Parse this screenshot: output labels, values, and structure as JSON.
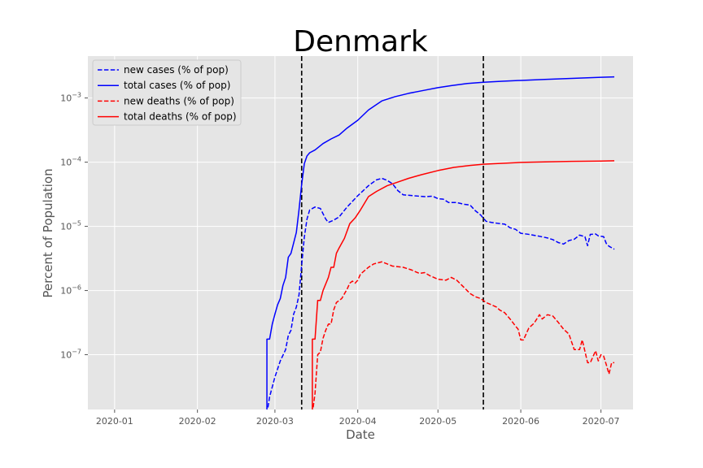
{
  "chart_data": {
    "type": "line",
    "title": "Denmark",
    "xlabel": "Date",
    "ylabel": "Percent of Population",
    "y_scale": "log",
    "xlim": [
      "2019-12-22",
      "2020-07-13"
    ],
    "ylim": [
      1.4e-08,
      0.0045
    ],
    "x_tick_labels": [
      "2020-01",
      "2020-02",
      "2020-03",
      "2020-04",
      "2020-05",
      "2020-06",
      "2020-07"
    ],
    "x_tick_dates": [
      "2020-01-01",
      "2020-02-01",
      "2020-03-01",
      "2020-04-01",
      "2020-05-01",
      "2020-06-01",
      "2020-07-01"
    ],
    "y_ticks": [
      {
        "value": 1e-07,
        "base": "10",
        "exp": "−7"
      },
      {
        "value": 1e-06,
        "base": "10",
        "exp": "−6"
      },
      {
        "value": 1e-05,
        "base": "10",
        "exp": "−5"
      },
      {
        "value": 0.0001,
        "base": "10",
        "exp": "−4"
      },
      {
        "value": 0.001,
        "base": "10",
        "exp": "−3"
      }
    ],
    "grid": true,
    "legend_position": "top-left",
    "vlines": [
      "2020-03-11",
      "2020-05-18"
    ],
    "vline_color": "#000000",
    "series": [
      {
        "name": "new cases (% of pop)",
        "color": "#0000ff",
        "dash": "dashed",
        "points": [
          [
            "2020-02-27",
            1.2e-08
          ],
          [
            "2020-02-28",
            2.2e-08
          ],
          [
            "2020-03-01",
            4.5e-08
          ],
          [
            "2020-03-03",
            8e-08
          ],
          [
            "2020-03-05",
            1.2e-07
          ],
          [
            "2020-03-06",
            2e-07
          ],
          [
            "2020-03-07",
            2.4e-07
          ],
          [
            "2020-03-08",
            4.3e-07
          ],
          [
            "2020-03-09",
            5.5e-07
          ],
          [
            "2020-03-10",
            8.5e-07
          ],
          [
            "2020-03-11",
            2.5e-06
          ],
          [
            "2020-03-12",
            6.8e-06
          ],
          [
            "2020-03-13",
            1.3e-05
          ],
          [
            "2020-03-14",
            1.8e-05
          ],
          [
            "2020-03-16",
            2e-05
          ],
          [
            "2020-03-18",
            1.9e-05
          ],
          [
            "2020-03-20",
            1.3e-05
          ],
          [
            "2020-03-21",
            1.15e-05
          ],
          [
            "2020-03-23",
            1.25e-05
          ],
          [
            "2020-03-25",
            1.4e-05
          ],
          [
            "2020-03-28",
            2e-05
          ],
          [
            "2020-04-01",
            3e-05
          ],
          [
            "2020-04-05",
            4.3e-05
          ],
          [
            "2020-04-08",
            5.3e-05
          ],
          [
            "2020-04-10",
            5.6e-05
          ],
          [
            "2020-04-12",
            5.2e-05
          ],
          [
            "2020-04-14",
            4.6e-05
          ],
          [
            "2020-04-16",
            3.6e-05
          ],
          [
            "2020-04-18",
            3.1e-05
          ],
          [
            "2020-04-22",
            3e-05
          ],
          [
            "2020-04-26",
            2.9e-05
          ],
          [
            "2020-04-29",
            2.95e-05
          ],
          [
            "2020-05-01",
            2.7e-05
          ],
          [
            "2020-05-03",
            2.65e-05
          ],
          [
            "2020-05-05",
            2.35e-05
          ],
          [
            "2020-05-08",
            2.35e-05
          ],
          [
            "2020-05-11",
            2.2e-05
          ],
          [
            "2020-05-13",
            2.15e-05
          ],
          [
            "2020-05-15",
            1.75e-05
          ],
          [
            "2020-05-17",
            1.5e-05
          ],
          [
            "2020-05-19",
            1.2e-05
          ],
          [
            "2020-05-21",
            1.15e-05
          ],
          [
            "2020-05-23",
            1.12e-05
          ],
          [
            "2020-05-26",
            1.08e-05
          ],
          [
            "2020-05-28",
            9.5e-06
          ],
          [
            "2020-05-30",
            9e-06
          ],
          [
            "2020-06-01",
            7.8e-06
          ],
          [
            "2020-06-04",
            7.5e-06
          ],
          [
            "2020-06-08",
            7e-06
          ],
          [
            "2020-06-11",
            6.6e-06
          ],
          [
            "2020-06-13",
            6.2e-06
          ],
          [
            "2020-06-15",
            5.6e-06
          ],
          [
            "2020-06-17",
            5.3e-06
          ],
          [
            "2020-06-19",
            6e-06
          ],
          [
            "2020-06-21",
            6.3e-06
          ],
          [
            "2020-06-23",
            7.3e-06
          ],
          [
            "2020-06-25",
            6.9e-06
          ],
          [
            "2020-06-26",
            5e-06
          ],
          [
            "2020-06-27",
            7.5e-06
          ],
          [
            "2020-06-29",
            7.6e-06
          ],
          [
            "2020-06-30",
            7.1e-06
          ],
          [
            "2020-07-02",
            6.9e-06
          ],
          [
            "2020-07-03",
            5.4e-06
          ],
          [
            "2020-07-04",
            4.9e-06
          ],
          [
            "2020-07-06",
            4.4e-06
          ]
        ]
      },
      {
        "name": "total cases (% of pop)",
        "color": "#0000ff",
        "dash": "solid",
        "points": [
          [
            "2020-02-27",
            1.2e-08
          ],
          [
            "2020-02-27",
            1.75e-07
          ],
          [
            "2020-02-28",
            1.75e-07
          ],
          [
            "2020-02-29",
            3e-07
          ],
          [
            "2020-03-01",
            4.3e-07
          ],
          [
            "2020-03-02",
            6e-07
          ],
          [
            "2020-03-03",
            7.5e-07
          ],
          [
            "2020-03-04",
            1.2e-06
          ],
          [
            "2020-03-05",
            1.6e-06
          ],
          [
            "2020-03-06",
            3.3e-06
          ],
          [
            "2020-03-07",
            3.8e-06
          ],
          [
            "2020-03-08",
            5.5e-06
          ],
          [
            "2020-03-09",
            8e-06
          ],
          [
            "2020-03-10",
            1.8e-05
          ],
          [
            "2020-03-11",
            4.5e-05
          ],
          [
            "2020-03-12",
            9.5e-05
          ],
          [
            "2020-03-13",
            0.000125
          ],
          [
            "2020-03-14",
            0.00014
          ],
          [
            "2020-03-16",
            0.000155
          ],
          [
            "2020-03-19",
            0.000195
          ],
          [
            "2020-03-22",
            0.00023
          ],
          [
            "2020-03-25",
            0.000265
          ],
          [
            "2020-03-28",
            0.00034
          ],
          [
            "2020-04-01",
            0.00045
          ],
          [
            "2020-04-05",
            0.00065
          ],
          [
            "2020-04-10",
            0.0009
          ],
          [
            "2020-04-15",
            0.00105
          ],
          [
            "2020-04-20",
            0.00118
          ],
          [
            "2020-04-26",
            0.00132
          ],
          [
            "2020-05-01",
            0.00145
          ],
          [
            "2020-05-06",
            0.00156
          ],
          [
            "2020-05-12",
            0.00168
          ],
          [
            "2020-05-18",
            0.00176
          ],
          [
            "2020-05-25",
            0.00182
          ],
          [
            "2020-06-01",
            0.00188
          ],
          [
            "2020-06-10",
            0.00195
          ],
          [
            "2020-06-20",
            0.00202
          ],
          [
            "2020-07-01",
            0.0021
          ],
          [
            "2020-07-06",
            0.00213
          ]
        ]
      },
      {
        "name": "new deaths (% of pop)",
        "color": "#ff0000",
        "dash": "dashed",
        "points": [
          [
            "2020-03-15",
            1.2e-08
          ],
          [
            "2020-03-16",
            2.5e-08
          ],
          [
            "2020-03-17",
            1e-07
          ],
          [
            "2020-03-18",
            1.1e-07
          ],
          [
            "2020-03-19",
            1.8e-07
          ],
          [
            "2020-03-20",
            2.4e-07
          ],
          [
            "2020-03-21",
            3e-07
          ],
          [
            "2020-03-22",
            3e-07
          ],
          [
            "2020-03-23",
            5e-07
          ],
          [
            "2020-03-24",
            6.5e-07
          ],
          [
            "2020-03-26",
            7.5e-07
          ],
          [
            "2020-03-28",
            1.05e-06
          ],
          [
            "2020-03-29",
            1.3e-06
          ],
          [
            "2020-03-30",
            1.4e-06
          ],
          [
            "2020-03-31",
            1.3e-06
          ],
          [
            "2020-04-01",
            1.45e-06
          ],
          [
            "2020-04-02",
            1.8e-06
          ],
          [
            "2020-04-05",
            2.3e-06
          ],
          [
            "2020-04-07",
            2.6e-06
          ],
          [
            "2020-04-10",
            2.8e-06
          ],
          [
            "2020-04-12",
            2.6e-06
          ],
          [
            "2020-04-14",
            2.4e-06
          ],
          [
            "2020-04-18",
            2.3e-06
          ],
          [
            "2020-04-21",
            2.1e-06
          ],
          [
            "2020-04-24",
            1.85e-06
          ],
          [
            "2020-04-26",
            1.9e-06
          ],
          [
            "2020-04-28",
            1.7e-06
          ],
          [
            "2020-05-01",
            1.5e-06
          ],
          [
            "2020-05-04",
            1.45e-06
          ],
          [
            "2020-05-06",
            1.6e-06
          ],
          [
            "2020-05-08",
            1.45e-06
          ],
          [
            "2020-05-10",
            1.2e-06
          ],
          [
            "2020-05-13",
            9e-07
          ],
          [
            "2020-05-15",
            8e-07
          ],
          [
            "2020-05-17",
            7.5e-07
          ],
          [
            "2020-05-19",
            6.5e-07
          ],
          [
            "2020-05-21",
            6e-07
          ],
          [
            "2020-05-23",
            5.5e-07
          ],
          [
            "2020-05-24",
            5e-07
          ],
          [
            "2020-05-26",
            4.5e-07
          ],
          [
            "2020-05-28",
            3.6e-07
          ],
          [
            "2020-05-30",
            2.8e-07
          ],
          [
            "2020-05-31",
            2.5e-07
          ],
          [
            "2020-06-01",
            1.7e-07
          ],
          [
            "2020-06-02",
            1.7e-07
          ],
          [
            "2020-06-04",
            2.6e-07
          ],
          [
            "2020-06-06",
            3.1e-07
          ],
          [
            "2020-06-08",
            4.2e-07
          ],
          [
            "2020-06-09",
            3.6e-07
          ],
          [
            "2020-06-11",
            4.2e-07
          ],
          [
            "2020-06-13",
            4e-07
          ],
          [
            "2020-06-15",
            3.2e-07
          ],
          [
            "2020-06-17",
            2.5e-07
          ],
          [
            "2020-06-19",
            2.1e-07
          ],
          [
            "2020-06-21",
            1.2e-07
          ],
          [
            "2020-06-23",
            1.2e-07
          ],
          [
            "2020-06-24",
            1.7e-07
          ],
          [
            "2020-06-26",
            7.5e-08
          ],
          [
            "2020-06-27",
            7.5e-08
          ],
          [
            "2020-06-29",
            1.15e-07
          ],
          [
            "2020-06-30",
            8e-08
          ],
          [
            "2020-07-01",
            1e-07
          ],
          [
            "2020-07-02",
            9.5e-08
          ],
          [
            "2020-07-03",
            7e-08
          ],
          [
            "2020-07-04",
            5e-08
          ],
          [
            "2020-07-05",
            7.5e-08
          ],
          [
            "2020-07-06",
            7.5e-08
          ]
        ]
      },
      {
        "name": "total deaths (% of pop)",
        "color": "#ff0000",
        "dash": "solid",
        "points": [
          [
            "2020-03-15",
            1.2e-08
          ],
          [
            "2020-03-15",
            1.75e-07
          ],
          [
            "2020-03-16",
            1.75e-07
          ],
          [
            "2020-03-17",
            7e-07
          ],
          [
            "2020-03-18",
            7e-07
          ],
          [
            "2020-03-19",
            1e-06
          ],
          [
            "2020-03-21",
            1.6e-06
          ],
          [
            "2020-03-22",
            2.3e-06
          ],
          [
            "2020-03-23",
            2.3e-06
          ],
          [
            "2020-03-24",
            3.8e-06
          ],
          [
            "2020-03-25",
            4.6e-06
          ],
          [
            "2020-03-27",
            6.5e-06
          ],
          [
            "2020-03-29",
            1.1e-05
          ],
          [
            "2020-03-31",
            1.35e-05
          ],
          [
            "2020-04-02",
            1.8e-05
          ],
          [
            "2020-04-05",
            2.9e-05
          ],
          [
            "2020-04-08",
            3.5e-05
          ],
          [
            "2020-04-12",
            4.3e-05
          ],
          [
            "2020-04-16",
            4.9e-05
          ],
          [
            "2020-04-20",
            5.6e-05
          ],
          [
            "2020-04-25",
            6.4e-05
          ],
          [
            "2020-05-01",
            7.4e-05
          ],
          [
            "2020-05-07",
            8.3e-05
          ],
          [
            "2020-05-13",
            8.9e-05
          ],
          [
            "2020-05-18",
            9.3e-05
          ],
          [
            "2020-05-25",
            9.6e-05
          ],
          [
            "2020-06-01",
            9.9e-05
          ],
          [
            "2020-06-10",
            0.000101
          ],
          [
            "2020-06-20",
            0.000103
          ],
          [
            "2020-07-01",
            0.000104
          ],
          [
            "2020-07-06",
            0.000105
          ]
        ]
      }
    ]
  }
}
